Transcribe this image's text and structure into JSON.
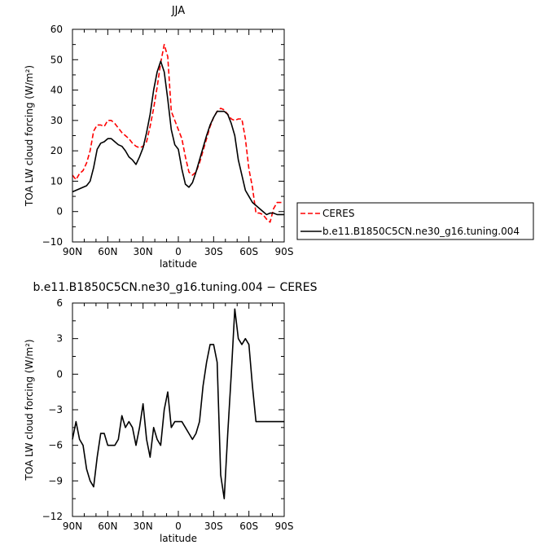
{
  "chart_data": [
    {
      "type": "line",
      "title": "JJA",
      "xlabel": "latitude",
      "ylabel": "TOA LW cloud forcing (W/m²)",
      "xlim": [
        90,
        -90
      ],
      "ylim": [
        -10,
        60
      ],
      "x_ticks": [
        {
          "value": 90,
          "label": "90N"
        },
        {
          "value": 60,
          "label": "60N"
        },
        {
          "value": 30,
          "label": "30N"
        },
        {
          "value": 0,
          "label": "0"
        },
        {
          "value": -30,
          "label": "30S"
        },
        {
          "value": -60,
          "label": "60S"
        },
        {
          "value": -90,
          "label": "90S"
        }
      ],
      "y_ticks": [
        {
          "value": -10,
          "label": "−10"
        },
        {
          "value": 0,
          "label": "0"
        },
        {
          "value": 10,
          "label": "10"
        },
        {
          "value": 20,
          "label": "20"
        },
        {
          "value": 30,
          "label": "30"
        },
        {
          "value": 40,
          "label": "40"
        },
        {
          "value": 50,
          "label": "50"
        },
        {
          "value": 60,
          "label": "60"
        }
      ],
      "legend_placement": "right",
      "series": [
        {
          "name": "CERES",
          "color": "#ff0000",
          "dash": true,
          "x": [
            90,
            87,
            84,
            81,
            78,
            75,
            72,
            69,
            66,
            63,
            60,
            57,
            54,
            51,
            48,
            45,
            42,
            39,
            36,
            33,
            30,
            27,
            24,
            21,
            18,
            15,
            12,
            9,
            6,
            3,
            0,
            -3,
            -6,
            -9,
            -12,
            -15,
            -18,
            -21,
            -24,
            -27,
            -30,
            -33,
            -36,
            -39,
            -42,
            -45,
            -48,
            -51,
            -54,
            -57,
            -60,
            -63,
            -66,
            -69,
            -72,
            -75,
            -78,
            -81,
            -84,
            -87,
            -90
          ],
          "y": [
            12,
            10.5,
            12.5,
            13.5,
            16,
            20,
            26.5,
            28.5,
            28.5,
            28,
            30,
            30,
            29,
            27.5,
            26,
            25,
            24,
            22.5,
            21.5,
            21,
            21.5,
            23,
            28,
            34,
            41,
            49,
            55,
            51,
            33,
            30,
            27,
            24,
            18,
            13,
            12,
            13,
            16,
            20,
            24,
            28,
            31,
            33,
            34,
            33.5,
            32,
            30.5,
            30,
            30.5,
            30.5,
            24,
            14,
            8,
            -0.5,
            -0.5,
            -1,
            -2.5,
            -3.5,
            1,
            3,
            3,
            3
          ]
        },
        {
          "name": "b.e11.B1850C5CN.ne30_g16.tuning.004",
          "color": "#000000",
          "dash": false,
          "x": [
            90,
            87,
            84,
            81,
            78,
            75,
            72,
            69,
            66,
            63,
            60,
            57,
            54,
            51,
            48,
            45,
            42,
            39,
            36,
            33,
            30,
            27,
            24,
            21,
            18,
            15,
            12,
            9,
            6,
            3,
            0,
            -3,
            -6,
            -9,
            -12,
            -15,
            -18,
            -21,
            -24,
            -27,
            -30,
            -33,
            -36,
            -39,
            -42,
            -45,
            -48,
            -51,
            -54,
            -57,
            -60,
            -63,
            -66,
            -69,
            -72,
            -75,
            -78,
            -81,
            -84,
            -87,
            -90
          ],
          "y": [
            6.5,
            7,
            7.5,
            8,
            8.5,
            10,
            14.5,
            20.5,
            22.5,
            23,
            24,
            24,
            23,
            22,
            21.5,
            20,
            18,
            17,
            15.5,
            18,
            21,
            26,
            32,
            40,
            46,
            49.5,
            46,
            37,
            27,
            22,
            20.5,
            14,
            9,
            8,
            9.5,
            13,
            17,
            21,
            25,
            28.5,
            31,
            33,
            33,
            33,
            32,
            29,
            25,
            17,
            12,
            7,
            5,
            3,
            2,
            1,
            0,
            -1,
            -0.5,
            -0.5,
            -1,
            -1,
            -1
          ]
        }
      ]
    },
    {
      "type": "line",
      "title": "b.e11.B1850C5CN.ne30_g16.tuning.004 − CERES",
      "xlabel": "latitude",
      "ylabel": "TOA LW cloud forcing (W/m²)",
      "xlim": [
        90,
        -90
      ],
      "ylim": [
        -12,
        6
      ],
      "x_ticks": [
        {
          "value": 90,
          "label": "90N"
        },
        {
          "value": 60,
          "label": "60N"
        },
        {
          "value": 30,
          "label": "30N"
        },
        {
          "value": 0,
          "label": "0"
        },
        {
          "value": -30,
          "label": "30S"
        },
        {
          "value": -60,
          "label": "60S"
        },
        {
          "value": -90,
          "label": "90S"
        }
      ],
      "y_ticks": [
        {
          "value": -12,
          "label": "−12"
        },
        {
          "value": -9,
          "label": "−9"
        },
        {
          "value": -6,
          "label": "−6"
        },
        {
          "value": -3,
          "label": "−3"
        },
        {
          "value": 0,
          "label": "0"
        },
        {
          "value": 3,
          "label": "3"
        },
        {
          "value": 6,
          "label": "6"
        }
      ],
      "series": [
        {
          "color": "#000000",
          "dash": false,
          "x": [
            90,
            87,
            84,
            81,
            78,
            75,
            72,
            69,
            66,
            63,
            60,
            57,
            54,
            51,
            48,
            45,
            42,
            39,
            36,
            33,
            30,
            27,
            24,
            21,
            18,
            15,
            12,
            9,
            6,
            3,
            0,
            -3,
            -6,
            -9,
            -12,
            -15,
            -18,
            -21,
            -24,
            -27,
            -30,
            -33,
            -36,
            -39,
            -42,
            -45,
            -48,
            -51,
            -54,
            -57,
            -60,
            -63,
            -66,
            -69,
            -72,
            -75,
            -78,
            -81,
            -84,
            -87,
            -90
          ],
          "y": [
            -5.5,
            -4,
            -5.5,
            -6,
            -8,
            -9,
            -9.5,
            -7,
            -5,
            -5,
            -6,
            -6,
            -6,
            -5.5,
            -3.5,
            -4.5,
            -4,
            -4.5,
            -6,
            -4.5,
            -2.5,
            -5.5,
            -7,
            -4.5,
            -5.5,
            -6,
            -3,
            -1.5,
            -4.5,
            -4,
            -4,
            -4,
            -4.5,
            -5,
            -5.5,
            -5,
            -4,
            -1,
            1,
            2.5,
            2.5,
            1,
            -8.5,
            -10.5,
            -5,
            0,
            5.5,
            3,
            2.5,
            3,
            2.5,
            -1,
            -4,
            -4,
            -4,
            -4,
            -4,
            -4,
            -4,
            -4,
            -4
          ]
        }
      ]
    }
  ]
}
